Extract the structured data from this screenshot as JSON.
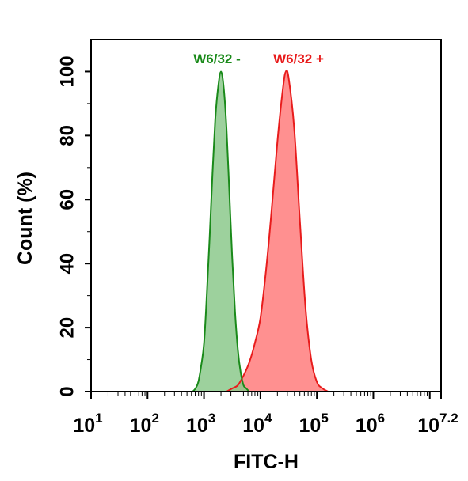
{
  "chart_data": {
    "type": "area",
    "xlabel": "FITC-H",
    "ylabel": "Count  (%)",
    "xscale": "log",
    "xlim": [
      10,
      15848932
    ],
    "ylim": [
      0,
      110
    ],
    "grid": false,
    "x_tick_labels": [
      {
        "base": "10",
        "exp": "1"
      },
      {
        "base": "10",
        "exp": "2"
      },
      {
        "base": "10",
        "exp": "3"
      },
      {
        "base": "10",
        "exp": "4"
      },
      {
        "base": "10",
        "exp": "5"
      },
      {
        "base": "10",
        "exp": "6"
      },
      {
        "base": "10",
        "exp": "7.2"
      }
    ],
    "y_ticks": [
      0,
      20,
      40,
      60,
      80,
      100
    ],
    "y_tick_labels": [
      "0",
      "20",
      "40",
      "60",
      "80",
      "100"
    ],
    "legend_placement": "top-center",
    "series": [
      {
        "name": "W6/32 -",
        "color": "#1a8a1a",
        "fill": "#8cc98c",
        "x": [
          631,
          708,
          794,
          891,
          1000,
          1122,
          1259,
          1413,
          1585,
          1778,
          1995,
          2239,
          2512,
          2818,
          3162,
          3548,
          3981,
          4467,
          5012,
          5623,
          6310
        ],
        "y": [
          0,
          1,
          3,
          8,
          15,
          30,
          48,
          68,
          85,
          95,
          100,
          95,
          82,
          62,
          42,
          25,
          13,
          6,
          2,
          1,
          0
        ]
      },
      {
        "name": "W6/32 +",
        "color": "#e81c1c",
        "fill": "#ff8a8a",
        "x": [
          2512,
          3162,
          3981,
          5012,
          6310,
          7943,
          10000,
          12589,
          15849,
          19953,
          25119,
          28184,
          31623,
          39811,
          50119,
          63096,
          79433,
          100000,
          125893,
          158489
        ],
        "y": [
          0,
          1,
          2,
          5,
          9,
          15,
          23,
          38,
          57,
          78,
          95,
          100,
          98,
          82,
          53,
          26,
          10,
          3,
          1,
          0
        ]
      }
    ]
  }
}
